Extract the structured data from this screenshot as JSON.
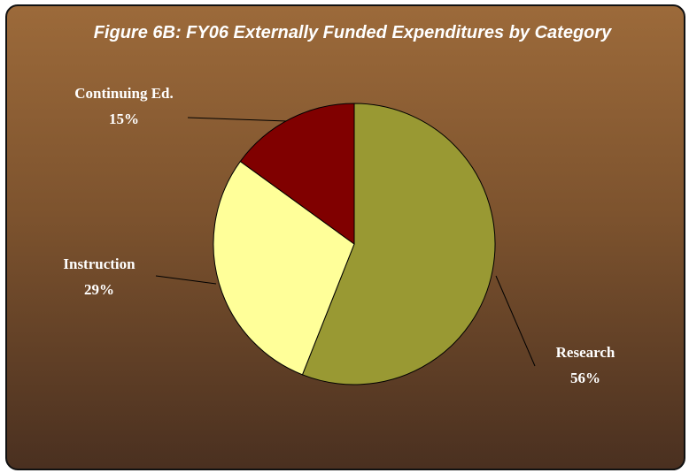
{
  "chart_data": {
    "type": "pie",
    "title": "Figure 6B: FY06 Externally Funded Expenditures by Category",
    "categories": [
      "Research",
      "Instruction",
      "Continuing Ed."
    ],
    "values": [
      56,
      29,
      15
    ],
    "value_labels": [
      "56%",
      "29%",
      "15%"
    ],
    "colors": [
      "#999933",
      "#ffff99",
      "#800000"
    ]
  }
}
